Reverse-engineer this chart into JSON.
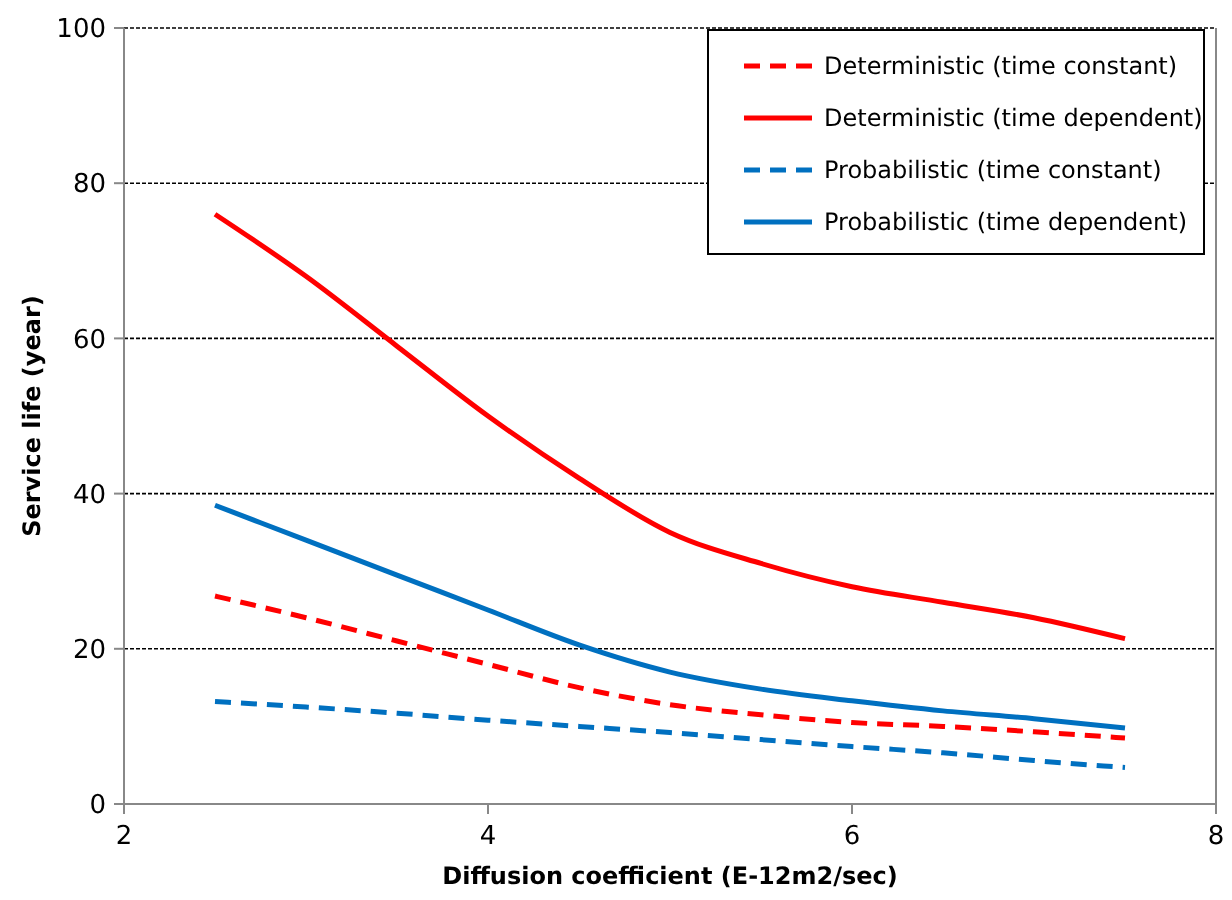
{
  "chart_data": {
    "type": "line",
    "xlabel": "Diffusion coefficient (E-12m2/sec)",
    "ylabel": "Service life (year)",
    "xlim": [
      2,
      8
    ],
    "xticks": [
      2,
      4,
      6,
      8
    ],
    "ylim": [
      0,
      100
    ],
    "yticks": [
      0,
      20,
      40,
      60,
      80,
      100
    ],
    "grid": "y",
    "legend": "top right",
    "marker": "none",
    "x": [
      2.5,
      3,
      3.5,
      4,
      4.5,
      5,
      5.5,
      6,
      6.5,
      7,
      7.5
    ],
    "series": [
      {
        "name": "Deterministic (time constant)",
        "color": "#ff0000",
        "line_style": "dashed",
        "values": [
          26.8,
          24,
          21,
          18,
          15,
          12.8,
          11.5,
          10.5,
          10,
          9.3,
          8.5
        ]
      },
      {
        "name": "Deterministic (time dependent)",
        "color": "#ff0000",
        "line_style": "solid",
        "values": [
          76,
          68,
          59,
          50,
          42,
          35,
          31,
          28,
          26,
          24,
          21.3
        ]
      },
      {
        "name": "Probabilistic (time constant)",
        "color": "#0070c0",
        "line_style": "dashed",
        "values": [
          13.2,
          12.5,
          11.7,
          10.8,
          10,
          9.2,
          8.3,
          7.4,
          6.6,
          5.6,
          4.7
        ]
      },
      {
        "name": "Probabilistic (time dependent)",
        "color": "#0070c0",
        "line_style": "solid",
        "values": [
          38.5,
          34,
          29.5,
          25,
          20.5,
          17,
          14.8,
          13.3,
          12,
          11,
          9.8
        ]
      }
    ]
  }
}
